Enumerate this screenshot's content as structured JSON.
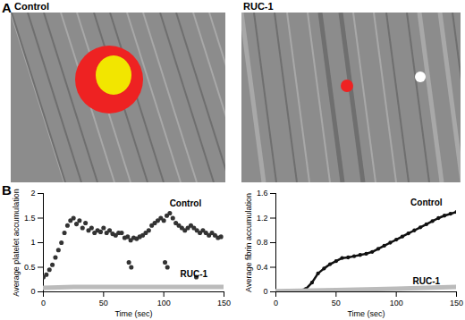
{
  "figure": {
    "panel_labels": [
      "A",
      "B"
    ],
    "images": [
      {
        "label": "Control"
      },
      {
        "label": "RUC-1"
      }
    ]
  },
  "chart_data": [
    {
      "type": "scatter",
      "x_label": "Time (sec)",
      "y_label": "Average platelet accumulation",
      "xlim": [
        0,
        150
      ],
      "xticks": [
        0,
        50,
        100,
        150
      ],
      "ylim": [
        0,
        2
      ],
      "yticks": [
        0,
        0.5,
        1,
        1.5,
        2
      ],
      "grid": false,
      "legend": null,
      "annotations": [
        {
          "text": "Control",
          "x": 118,
          "y": 1.8
        },
        {
          "text": "RUC-1",
          "x": 125,
          "y": 0.35
        }
      ],
      "series": [
        {
          "name": "Control",
          "type": "scatter",
          "marker": "circle",
          "color": "#333333",
          "x": [
            0,
            2.5,
            5,
            7.5,
            10,
            12.5,
            15,
            17.5,
            20,
            22.5,
            25,
            27.5,
            30,
            32.5,
            35,
            37.5,
            40,
            42.5,
            45,
            47.5,
            50,
            52.5,
            55,
            57.5,
            60,
            62.5,
            65,
            67.5,
            70,
            71,
            72.5,
            73,
            75,
            77.5,
            80,
            82.5,
            85,
            87.5,
            90,
            92.5,
            95,
            97.5,
            100,
            101,
            102.5,
            103,
            105,
            107.5,
            110,
            112.5,
            115,
            117.5,
            120,
            122.5,
            125,
            127,
            127.5,
            130,
            132.5,
            135,
            137.5,
            140,
            142.5,
            145,
            147.5
          ],
          "values": [
            0.3,
            0.35,
            0.45,
            0.55,
            0.7,
            0.85,
            1.0,
            1.2,
            1.35,
            1.45,
            1.5,
            1.38,
            1.45,
            1.3,
            1.4,
            1.25,
            1.3,
            1.2,
            1.25,
            1.22,
            1.3,
            1.2,
            1.25,
            1.18,
            1.15,
            1.2,
            1.2,
            1.1,
            1.12,
            0.6,
            1.05,
            0.5,
            1.1,
            1.08,
            1.12,
            1.15,
            1.2,
            1.25,
            1.35,
            1.4,
            1.45,
            1.5,
            1.45,
            0.6,
            1.55,
            0.5,
            1.6,
            1.5,
            1.4,
            1.35,
            1.3,
            1.25,
            1.3,
            1.35,
            1.3,
            0.3,
            1.25,
            1.2,
            1.25,
            1.2,
            1.15,
            1.2,
            1.15,
            1.1,
            1.12
          ]
        },
        {
          "name": "RUC-1",
          "type": "line",
          "line_style": "solid",
          "color": "#bbbbbb",
          "x": [
            0,
            25,
            50,
            75,
            100,
            125,
            150
          ],
          "values": [
            0.08,
            0.1,
            0.1,
            0.1,
            0.1,
            0.1,
            0.1
          ]
        }
      ]
    },
    {
      "type": "line",
      "x_label": "Time (sec)",
      "y_label": "Average fibrin accumulation",
      "xlim": [
        0,
        150
      ],
      "xticks": [
        0,
        50,
        100,
        150
      ],
      "ylim": [
        0,
        1.6
      ],
      "yticks": [
        0,
        0.4,
        0.8,
        1.2,
        1.6
      ],
      "grid": false,
      "legend": null,
      "annotations": [
        {
          "text": "Control",
          "x": 125,
          "y": 1.45
        },
        {
          "text": "RUC-1",
          "x": 125,
          "y": 0.17
        }
      ],
      "series": [
        {
          "name": "Control",
          "type": "line",
          "marker": "circle",
          "line_style": "solid",
          "color": "#111111",
          "x": [
            0,
            5,
            10,
            15,
            20,
            25,
            30,
            35,
            40,
            45,
            50,
            55,
            60,
            65,
            70,
            75,
            80,
            85,
            90,
            95,
            100,
            105,
            110,
            115,
            120,
            125,
            130,
            135,
            140,
            145,
            150
          ],
          "values": [
            0,
            0,
            0,
            0,
            0.02,
            0.05,
            0.15,
            0.3,
            0.38,
            0.45,
            0.5,
            0.55,
            0.56,
            0.58,
            0.6,
            0.62,
            0.65,
            0.7,
            0.75,
            0.8,
            0.85,
            0.9,
            0.95,
            1.0,
            1.05,
            1.1,
            1.15,
            1.2,
            1.24,
            1.27,
            1.3
          ]
        },
        {
          "name": "RUC-1",
          "type": "line",
          "line_style": "solid",
          "color": "#bbbbbb",
          "x": [
            0,
            50,
            100,
            150
          ],
          "values": [
            0.01,
            0.03,
            0.05,
            0.08
          ]
        }
      ]
    }
  ]
}
